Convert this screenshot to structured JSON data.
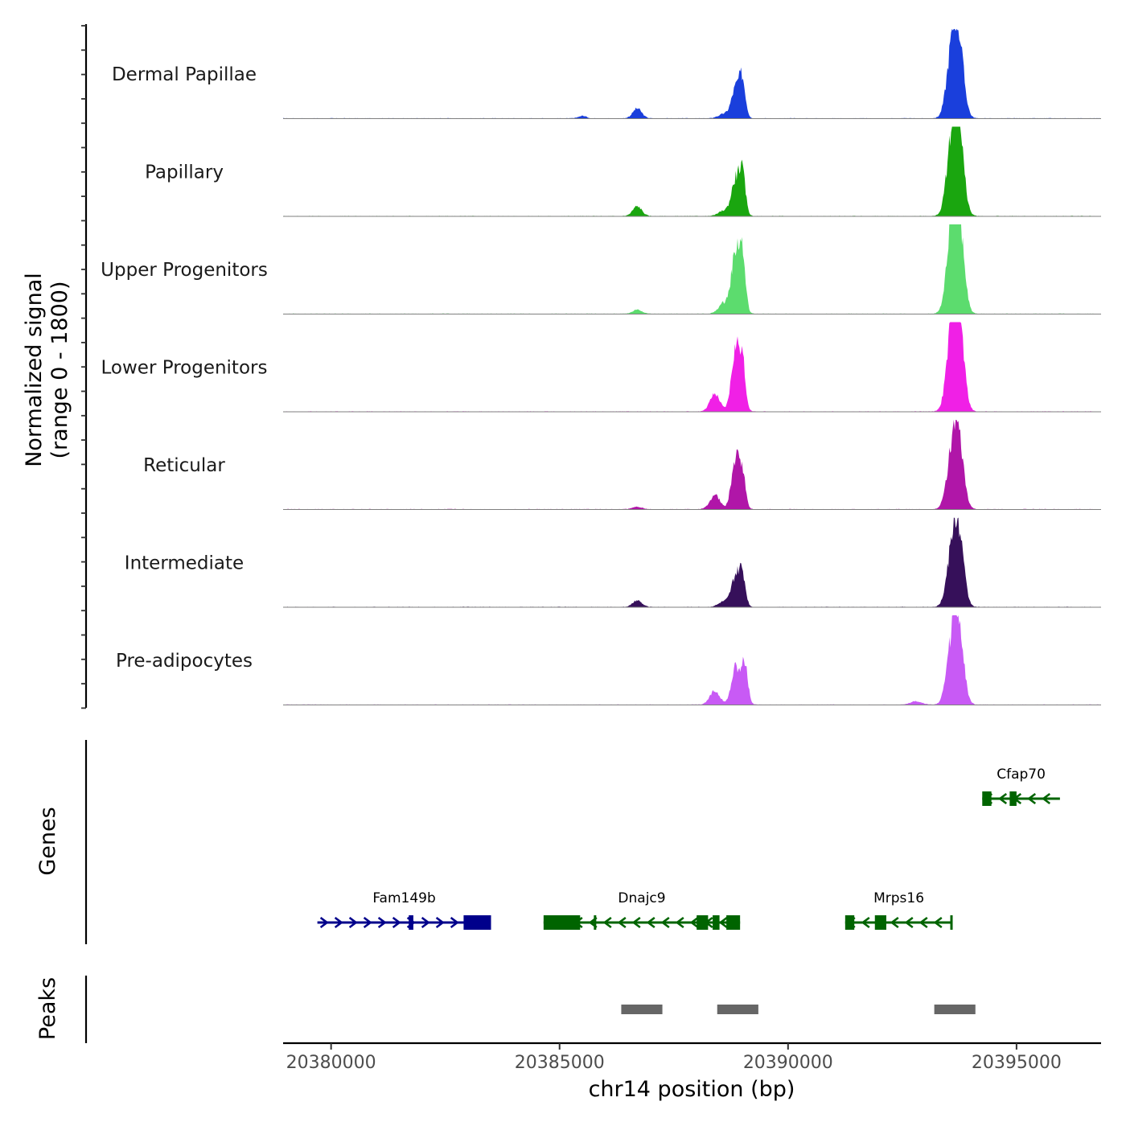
{
  "chart_data": {
    "type": "area",
    "title": "",
    "region": {
      "chromosome": "chr14",
      "start": 20378950,
      "end": 20396850
    },
    "xlabel": "chr14 position (bp)",
    "xticks": [
      20380000,
      20385000,
      20390000,
      20395000
    ],
    "xtick_labels": [
      "20380000",
      "20385000",
      "20390000",
      "20395000"
    ],
    "coverage_ylabel": "Normalized signal\n(range 0 - 1800)",
    "ylim": [
      0,
      1800
    ],
    "peak_shape": {
      "positions_bp": [
        20379000,
        20385500,
        20386300,
        20386700,
        20387000,
        20388300,
        20388550,
        20388750,
        20388850,
        20388950,
        20389050,
        20389200,
        20393000,
        20393300,
        20393450,
        20393550,
        20393600,
        20393650,
        20393700,
        20393800,
        20393900,
        20394000,
        20394300
      ],
      "note": "relative profile shared by all tracks; each track scales peaks by its own heights"
    },
    "series": [
      {
        "name": "Dermal Papillae",
        "color": "#1a3fdc",
        "peaks": [
          {
            "center": 20385500,
            "width": 80,
            "height": 60
          },
          {
            "center": 20386700,
            "width": 100,
            "height": 210
          },
          {
            "center": 20388600,
            "width": 120,
            "height": 100
          },
          {
            "center": 20388850,
            "width": 90,
            "height": 600
          },
          {
            "center": 20389000,
            "width": 70,
            "height": 750
          },
          {
            "center": 20393600,
            "width": 120,
            "height": 1450
          },
          {
            "center": 20393750,
            "width": 110,
            "height": 1150
          }
        ]
      },
      {
        "name": "Papillary",
        "color": "#1aa60f",
        "peaks": [
          {
            "center": 20386700,
            "width": 100,
            "height": 210
          },
          {
            "center": 20388600,
            "width": 120,
            "height": 120
          },
          {
            "center": 20388850,
            "width": 90,
            "height": 720
          },
          {
            "center": 20389000,
            "width": 70,
            "height": 830
          },
          {
            "center": 20393600,
            "width": 120,
            "height": 1600
          },
          {
            "center": 20393750,
            "width": 110,
            "height": 1300
          }
        ]
      },
      {
        "name": "Upper Progenitors",
        "color": "#5cdc6e",
        "peaks": [
          {
            "center": 20386700,
            "width": 100,
            "height": 90
          },
          {
            "center": 20388600,
            "width": 120,
            "height": 230
          },
          {
            "center": 20388850,
            "width": 90,
            "height": 1220
          },
          {
            "center": 20389000,
            "width": 70,
            "height": 1100
          },
          {
            "center": 20393600,
            "width": 120,
            "height": 1800
          },
          {
            "center": 20393750,
            "width": 110,
            "height": 1450
          }
        ]
      },
      {
        "name": "Lower Progenitors",
        "color": "#f020e6",
        "peaks": [
          {
            "center": 20388400,
            "width": 110,
            "height": 360
          },
          {
            "center": 20388850,
            "width": 90,
            "height": 1260
          },
          {
            "center": 20389000,
            "width": 70,
            "height": 920
          },
          {
            "center": 20393600,
            "width": 120,
            "height": 1720
          },
          {
            "center": 20393750,
            "width": 110,
            "height": 1450
          }
        ]
      },
      {
        "name": "Reticular",
        "color": "#b016a8",
        "peaks": [
          {
            "center": 20386700,
            "width": 100,
            "height": 60
          },
          {
            "center": 20388400,
            "width": 110,
            "height": 300
          },
          {
            "center": 20388850,
            "width": 90,
            "height": 1000
          },
          {
            "center": 20389000,
            "width": 70,
            "height": 680
          },
          {
            "center": 20393600,
            "width": 120,
            "height": 1200
          },
          {
            "center": 20393750,
            "width": 110,
            "height": 1000
          }
        ]
      },
      {
        "name": "Intermediate",
        "color": "#36105a",
        "peaks": [
          {
            "center": 20386700,
            "width": 100,
            "height": 140
          },
          {
            "center": 20388600,
            "width": 120,
            "height": 120
          },
          {
            "center": 20388850,
            "width": 90,
            "height": 600
          },
          {
            "center": 20389000,
            "width": 70,
            "height": 640
          },
          {
            "center": 20393600,
            "width": 120,
            "height": 1150
          },
          {
            "center": 20393750,
            "width": 110,
            "height": 1150
          }
        ]
      },
      {
        "name": "Pre-adipocytes",
        "color": "#c85af5",
        "peaks": [
          {
            "center": 20388400,
            "width": 110,
            "height": 300
          },
          {
            "center": 20388850,
            "width": 90,
            "height": 800
          },
          {
            "center": 20389050,
            "width": 70,
            "height": 830
          },
          {
            "center": 20392800,
            "width": 120,
            "height": 80
          },
          {
            "center": 20393600,
            "width": 120,
            "height": 1300
          },
          {
            "center": 20393750,
            "width": 110,
            "height": 1100
          }
        ]
      }
    ],
    "genes": [
      {
        "name": "Fam149b",
        "strand": "+",
        "color": "#00008b",
        "start": 20379700,
        "end": 20383500,
        "row": 2,
        "exons": [
          [
            20381700,
            20381800
          ],
          [
            20382900,
            20383500
          ]
        ]
      },
      {
        "name": "Dnajc9",
        "strand": "-",
        "color": "#006400",
        "start": 20384650,
        "end": 20388950,
        "row": 2,
        "exons": [
          [
            20384650,
            20385450
          ],
          [
            20385750,
            20385800
          ],
          [
            20388000,
            20388250
          ],
          [
            20388350,
            20388500
          ],
          [
            20388650,
            20388950
          ]
        ]
      },
      {
        "name": "Mrps16",
        "strand": "-",
        "color": "#006400",
        "start": 20391250,
        "end": 20393600,
        "row": 2,
        "exons": [
          [
            20391250,
            20391450
          ],
          [
            20391900,
            20392150
          ],
          [
            20393550,
            20393600
          ]
        ]
      },
      {
        "name": "Cfap70",
        "strand": "-",
        "color": "#006400",
        "start": 20394250,
        "end": 20395950,
        "row": 1,
        "exons": [
          [
            20394250,
            20394450
          ],
          [
            20394850,
            20395000
          ]
        ]
      }
    ],
    "genes_ylabel": "Genes",
    "peaks": [
      {
        "start": 20386350,
        "end": 20387250
      },
      {
        "start": 20388450,
        "end": 20389350
      },
      {
        "start": 20393200,
        "end": 20394100
      }
    ],
    "peaks_ylabel": "Peaks",
    "peak_color": "#666666"
  }
}
